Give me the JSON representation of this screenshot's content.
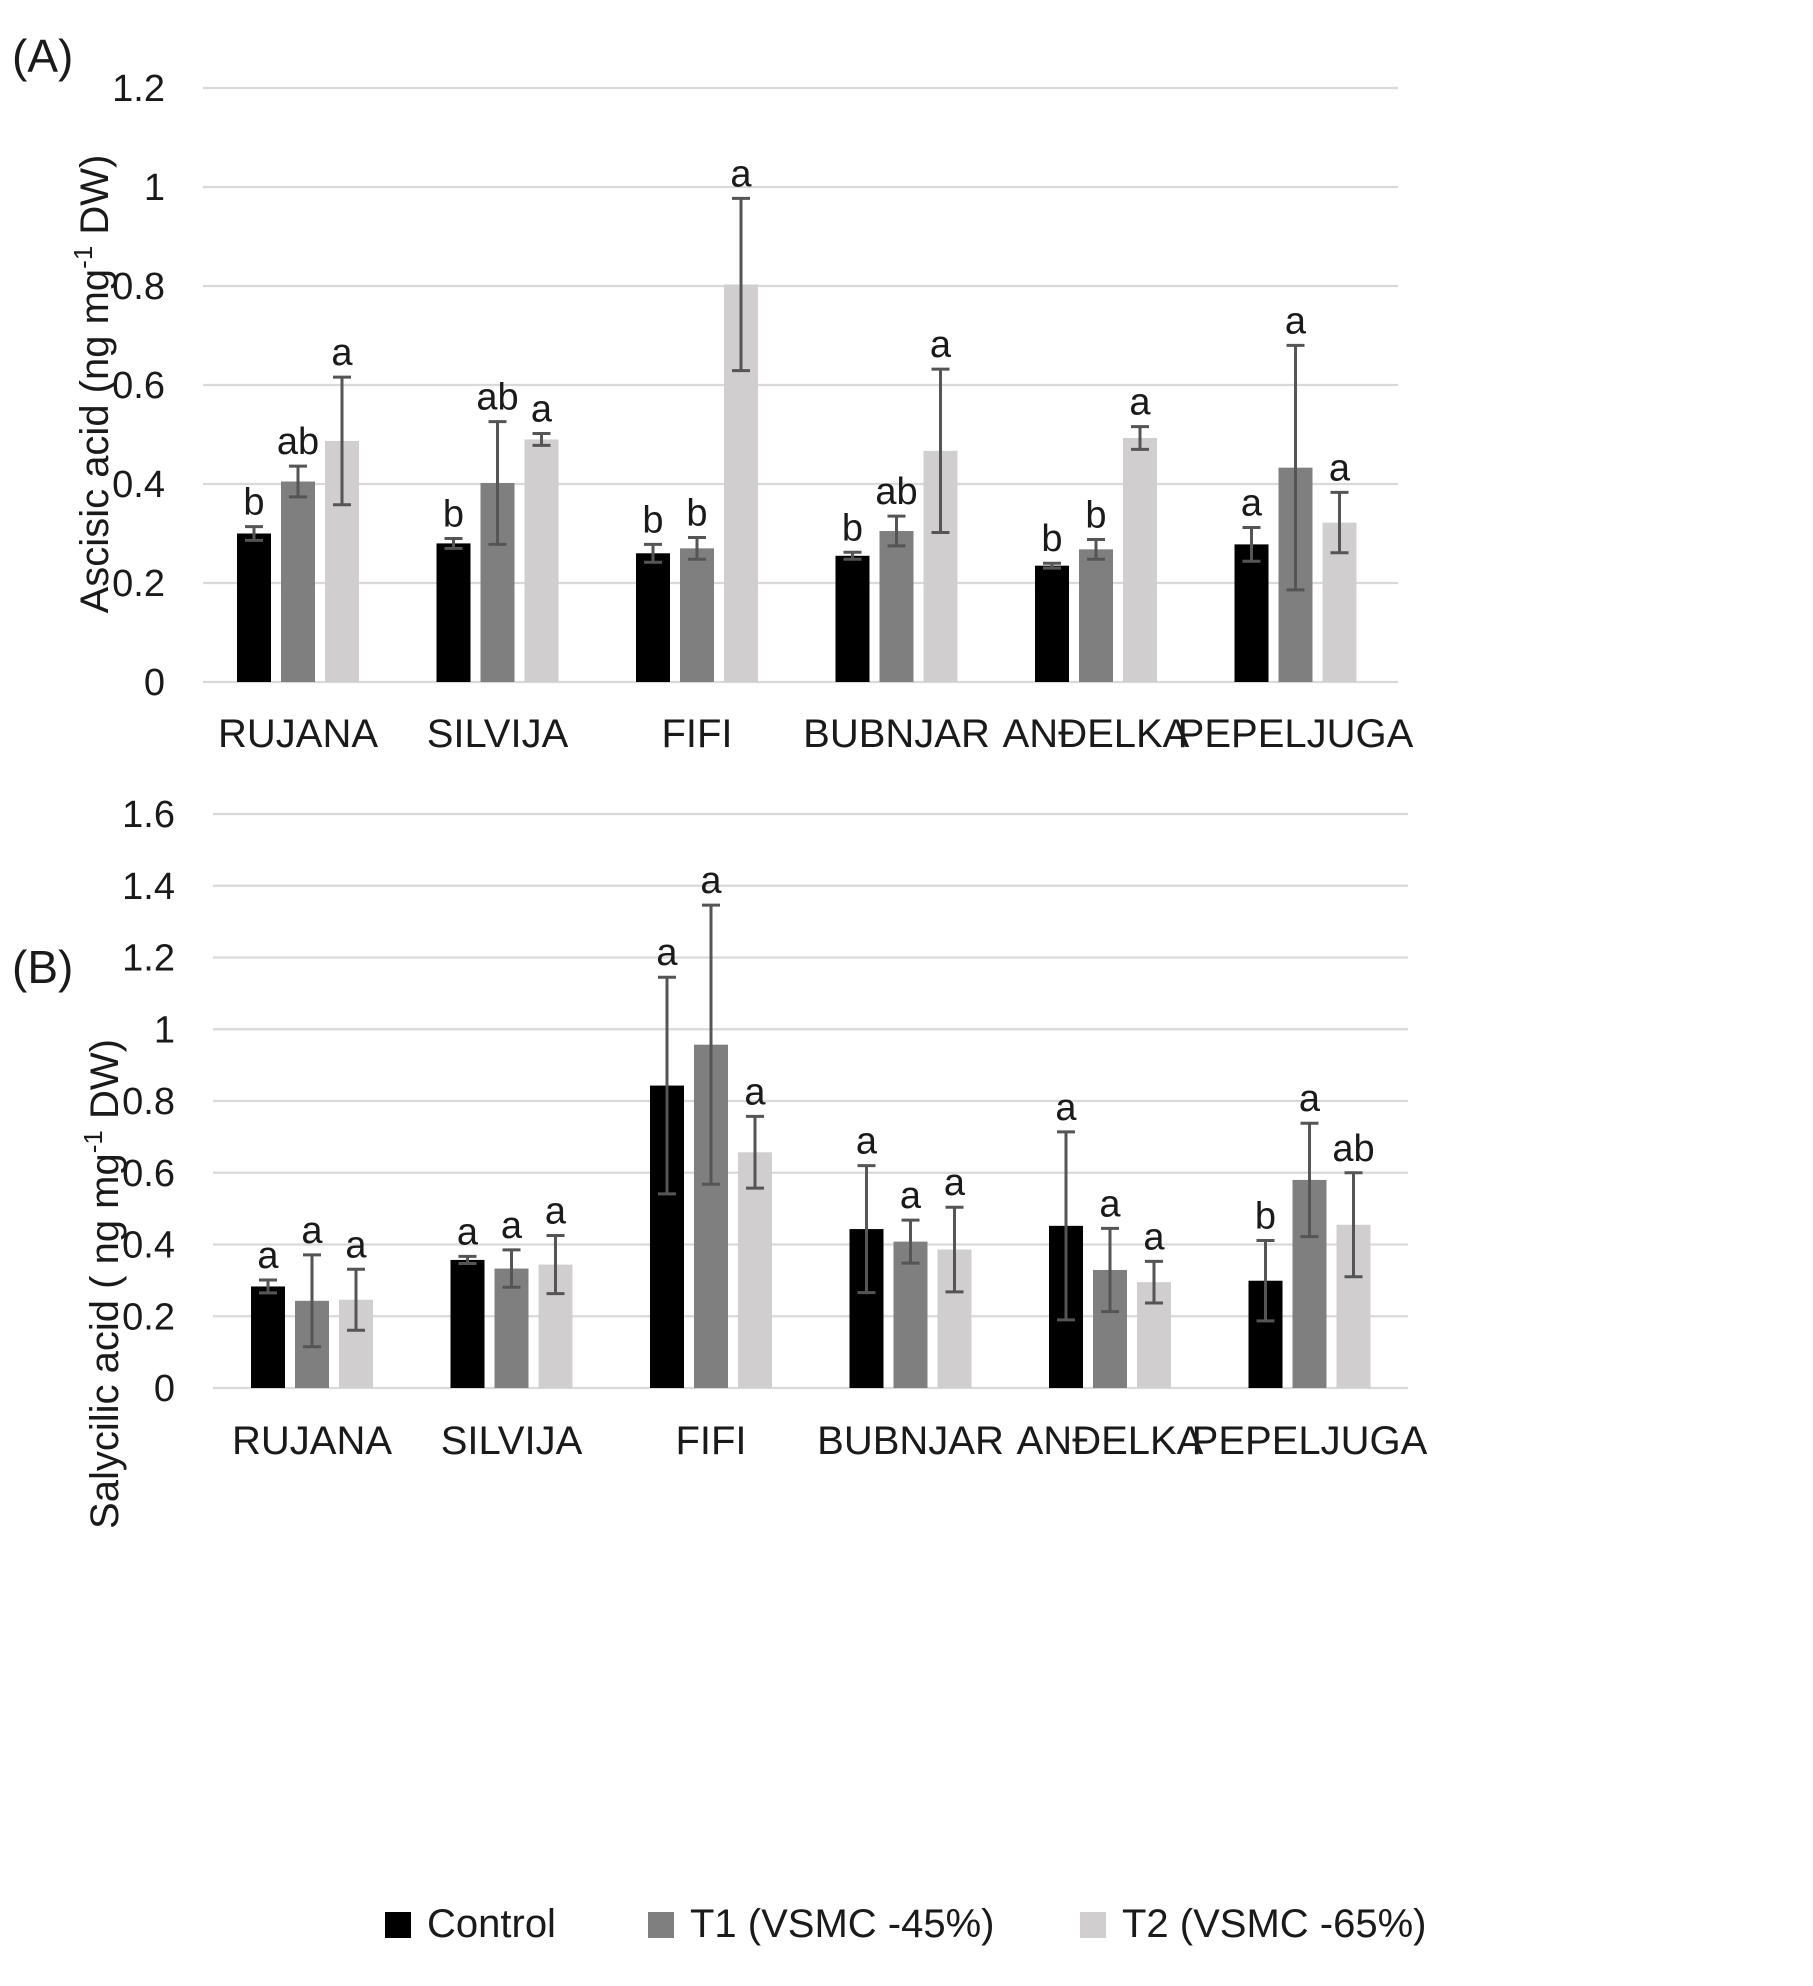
{
  "colors": {
    "control": "#000000",
    "t1": "#7f7f7f",
    "t2": "#d0cece",
    "grid": "#d9d9d9",
    "error_bar": "#555555",
    "text": "#1a1a1a"
  },
  "legend": {
    "items": [
      {
        "key": "control",
        "label": "Control"
      },
      {
        "key": "t1",
        "label": "T1 (VSMC -45%)"
      },
      {
        "key": "t2",
        "label": "T2 (VSMC -65%)"
      }
    ]
  },
  "chart_data": [
    {
      "type": "bar",
      "panel_label": "(A)",
      "ylabel_main": "Ascisic acid (ng mg",
      "ylabel_sup": "-1",
      "ylabel_tail": " DW)",
      "ylim": [
        0,
        1.2
      ],
      "yticks": [
        0,
        0.2,
        0.4,
        0.6,
        0.8,
        1,
        1.2
      ],
      "ytick_labels": [
        "0",
        "0.2",
        "0.4",
        "0.6",
        "0.8",
        "1",
        "1.2"
      ],
      "grid": true,
      "categories": [
        "RUJANA",
        "SILVIJA",
        "FIFI",
        "BUBNJAR",
        "ANĐELKA",
        "PEPELJUGA"
      ],
      "series": [
        {
          "key": "control",
          "name": "Control",
          "values": [
            0.3,
            0.28,
            0.26,
            0.255,
            0.235,
            0.278
          ],
          "errors": [
            0.014,
            0.01,
            0.018,
            0.007,
            0.005,
            0.034
          ],
          "letters": [
            "b",
            "b",
            "b",
            "b",
            "b",
            "a"
          ]
        },
        {
          "key": "t1",
          "name": "T1 (VSMC -45%)",
          "values": [
            0.405,
            0.402,
            0.27,
            0.305,
            0.268,
            0.433
          ],
          "errors": [
            0.031,
            0.124,
            0.022,
            0.03,
            0.02,
            0.247
          ],
          "letters": [
            "ab",
            "ab",
            "b",
            "ab",
            "b",
            "a"
          ]
        },
        {
          "key": "t2",
          "name": "T2 (VSMC -65%)",
          "values": [
            0.487,
            0.49,
            0.803,
            0.467,
            0.493,
            0.322
          ],
          "errors": [
            0.129,
            0.012,
            0.174,
            0.165,
            0.023,
            0.061
          ],
          "letters": [
            "a",
            "a",
            "a",
            "a",
            "a",
            "a"
          ]
        }
      ]
    },
    {
      "type": "bar",
      "panel_label": "(B)",
      "ylabel_main": "Salycilic acid ( ng mg",
      "ylabel_sup": "-1",
      "ylabel_tail": " DW)",
      "ylim": [
        0,
        1.6
      ],
      "yticks": [
        0,
        0.2,
        0.4,
        0.6,
        0.8,
        1,
        1.2,
        1.4,
        1.6
      ],
      "ytick_labels": [
        "0",
        "0.2",
        "0.4",
        "0.6",
        "0.8",
        "1",
        "1.2",
        "1.4",
        "1.6"
      ],
      "grid": true,
      "categories": [
        "RUJANA",
        "SILVIJA",
        "FIFI",
        "BUBNJAR",
        "ANĐELKA",
        "PEPELJUGA"
      ],
      "series": [
        {
          "key": "control",
          "name": "Control",
          "values": [
            0.283,
            0.357,
            0.843,
            0.443,
            0.452,
            0.299
          ],
          "errors": [
            0.018,
            0.01,
            0.302,
            0.177,
            0.262,
            0.112
          ],
          "letters": [
            "a",
            "a",
            "a",
            "a",
            "a",
            "b"
          ]
        },
        {
          "key": "t1",
          "name": "T1 (VSMC -45%)",
          "values": [
            0.243,
            0.333,
            0.957,
            0.408,
            0.329,
            0.58
          ],
          "errors": [
            0.128,
            0.052,
            0.389,
            0.06,
            0.116,
            0.158
          ],
          "letters": [
            "a",
            "a",
            "a",
            "a",
            "a",
            "a"
          ]
        },
        {
          "key": "t2",
          "name": "T2 (VSMC -65%)",
          "values": [
            0.246,
            0.344,
            0.657,
            0.386,
            0.295,
            0.455
          ],
          "errors": [
            0.085,
            0.081,
            0.1,
            0.118,
            0.058,
            0.145
          ],
          "letters": [
            "a",
            "a",
            "a",
            "a",
            "a",
            "ab"
          ]
        }
      ]
    }
  ]
}
